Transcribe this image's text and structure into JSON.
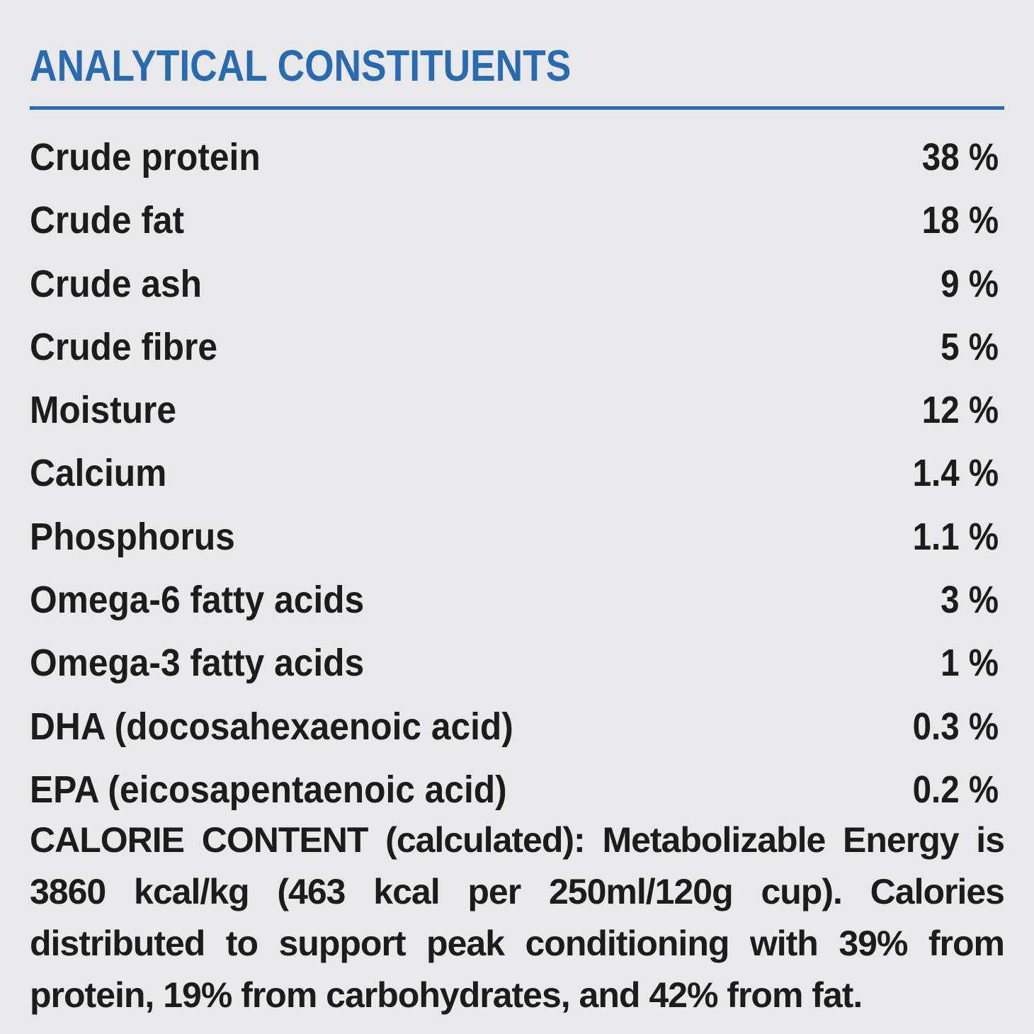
{
  "header": {
    "title": "ANALYTICAL CONSTITUENTS"
  },
  "colors": {
    "accent": "#2a6bb0",
    "text": "#1c1c1c",
    "background": "#e9e9eb"
  },
  "constituents": [
    {
      "label": "Crude protein",
      "value": "38 %"
    },
    {
      "label": "Crude fat",
      "value": "18 %"
    },
    {
      "label": "Crude ash",
      "value": "9 %"
    },
    {
      "label": "Crude fibre",
      "value": "5 %"
    },
    {
      "label": "Moisture",
      "value": "12 %"
    },
    {
      "label": "Calcium",
      "value": "1.4 %"
    },
    {
      "label": "Phosphorus",
      "value": "1.1 %"
    },
    {
      "label": "Omega-6 fatty acids",
      "value": "3 %"
    },
    {
      "label": "Omega-3 fatty acids",
      "value": "1 %"
    },
    {
      "label": "DHA (docosahexaenoic acid)",
      "value": "0.3 %"
    },
    {
      "label": "EPA (eicosapentaenoic acid)",
      "value": "0.2 %"
    }
  ],
  "calorie": {
    "text": "CALORIE CONTENT (calculated): Metabolizable Energy is 3860 kcal/kg (463 kcal per 250ml/120g cup). Calories distributed to support peak conditioning with 39% from protein, 19% from carbohydrates, and 42% from fat."
  }
}
